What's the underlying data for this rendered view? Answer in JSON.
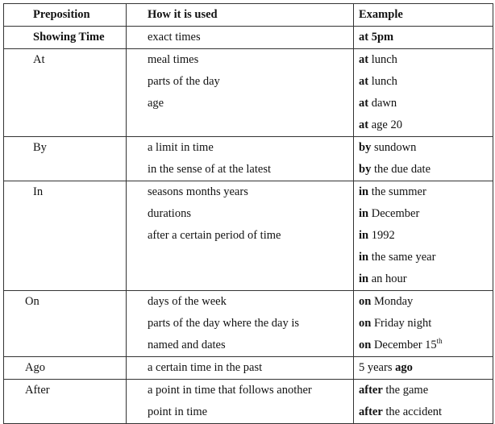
{
  "table": {
    "headers": [
      "Preposition",
      "How it is used",
      "Example"
    ],
    "rows": [
      {
        "preposition": "Showing Time",
        "bold": true,
        "uses": [
          "exact times"
        ],
        "examples": [
          [
            {
              "t": "at 5pm",
              "b": true
            }
          ]
        ]
      },
      {
        "preposition": "At",
        "uses": [
          "meal times",
          "parts of the day",
          "age"
        ],
        "examples": [
          [
            {
              "t": "at",
              "b": true
            },
            {
              "t": " lunch"
            }
          ],
          [
            {
              "t": "at",
              "b": true
            },
            {
              "t": " lunch"
            }
          ],
          [
            {
              "t": "at",
              "b": true
            },
            {
              "t": " dawn"
            }
          ],
          [
            {
              "t": "at",
              "b": true
            },
            {
              "t": " age 20"
            }
          ]
        ]
      },
      {
        "preposition": "By",
        "uses": [
          "a limit in time",
          "in the sense of at the latest"
        ],
        "examples": [
          [
            {
              "t": "by",
              "b": true
            },
            {
              "t": " sundown"
            }
          ],
          [
            {
              "t": "by",
              "b": true
            },
            {
              "t": " the due date"
            }
          ]
        ]
      },
      {
        "preposition": "In",
        "uses": [
          "seasons months years",
          "durations",
          "after a certain period of time"
        ],
        "examples": [
          [
            {
              "t": "in",
              "b": true
            },
            {
              "t": " the summer"
            }
          ],
          [
            {
              "t": "in",
              "b": true
            },
            {
              "t": " December"
            }
          ],
          [
            {
              "t": "in",
              "b": true
            },
            {
              "t": " 1992"
            }
          ],
          [
            {
              "t": "in",
              "b": true
            },
            {
              "t": " the same year"
            }
          ],
          [
            {
              "t": "in",
              "b": true
            },
            {
              "t": " an hour"
            }
          ]
        ]
      },
      {
        "preposition": "On",
        "indent": true,
        "uses": [
          "days of the week",
          "parts of the day where the day is",
          "named and dates"
        ],
        "examples": [
          [
            {
              "t": "on",
              "b": true
            },
            {
              "t": " Monday"
            }
          ],
          [
            {
              "t": "on",
              "b": true
            },
            {
              "t": " Friday night"
            }
          ],
          [
            {
              "t": "on",
              "b": true
            },
            {
              "t": " December 15"
            },
            {
              "t": "th",
              "sup": true
            }
          ]
        ]
      },
      {
        "preposition": "Ago",
        "indent": true,
        "uses": [
          "a certain time in the past"
        ],
        "examples": [
          [
            {
              "t": "5 years "
            },
            {
              "t": "ago",
              "b": true
            }
          ]
        ]
      },
      {
        "preposition": "After",
        "indent": true,
        "uses": [
          "a point in time that follows another",
          "point in time"
        ],
        "examples": [
          [
            {
              "t": "after",
              "b": true
            },
            {
              "t": " the game"
            }
          ],
          [
            {
              "t": "after",
              "b": true
            },
            {
              "t": " the accident"
            }
          ]
        ]
      }
    ]
  }
}
